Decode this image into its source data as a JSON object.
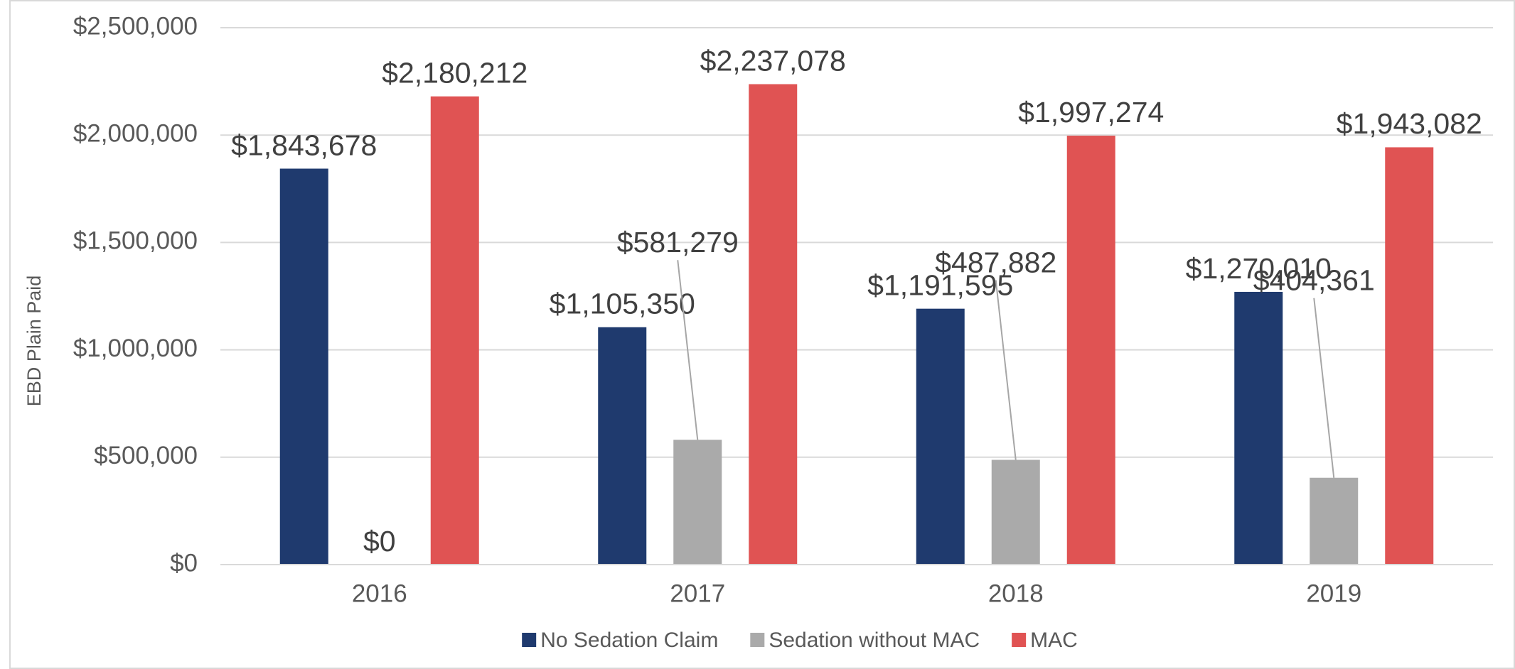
{
  "chart_data": {
    "type": "bar",
    "y_axis_label": "EBD Plain Paid",
    "categories": [
      "2016",
      "2017",
      "2018",
      "2019"
    ],
    "series": [
      {
        "name": "No Sedation Claim",
        "color": "#1f3a6e",
        "values": [
          1843678,
          1105350,
          1191595,
          1270010
        ],
        "value_labels": [
          "$1,843,678",
          "$1,105,350",
          "$1,191,595",
          "$1,270,010"
        ]
      },
      {
        "name": "Sedation without MAC",
        "color": "#aaaaaa",
        "values": [
          0,
          581279,
          487882,
          404361
        ],
        "value_labels": [
          "$0",
          "$581,279",
          "$487,882",
          "$404,361"
        ]
      },
      {
        "name": "MAC",
        "color": "#e05353",
        "values": [
          2180212,
          2237078,
          1997274,
          1943082
        ],
        "value_labels": [
          "$2,180,212",
          "$2,237,078",
          "$1,997,274",
          "$1,943,082"
        ]
      }
    ],
    "ylim": [
      0,
      2500000
    ],
    "yticks": [
      {
        "value": 0,
        "label": "$0"
      },
      {
        "value": 500000,
        "label": "$500,000"
      },
      {
        "value": 1000000,
        "label": "$1,000,000"
      },
      {
        "value": 1500000,
        "label": "$1,500,000"
      },
      {
        "value": 2000000,
        "label": "$2,000,000"
      },
      {
        "value": 2500000,
        "label": "$2,500,000"
      }
    ],
    "grid": true,
    "legend": "bottom"
  }
}
